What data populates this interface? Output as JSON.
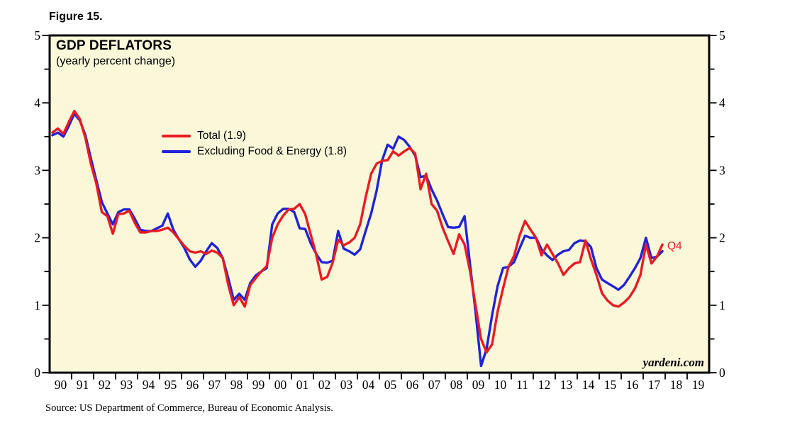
{
  "meta": {
    "figure_label": "Figure 15.",
    "source": "Source: US Department of Commerce, Bureau of Economic Analysis.",
    "watermark": "yardeni.com"
  },
  "chart_data": {
    "type": "line",
    "title": "GDP DEFLATORS",
    "subtitle": "(yearly percent change)",
    "frequency": "quarterly",
    "x_start_year": 1990,
    "x_end_year": 2020,
    "x_tick_labels": [
      "90",
      "91",
      "92",
      "93",
      "94",
      "95",
      "96",
      "97",
      "98",
      "99",
      "00",
      "01",
      "02",
      "03",
      "04",
      "05",
      "06",
      "07",
      "08",
      "09",
      "10",
      "11",
      "12",
      "13",
      "14",
      "15",
      "16",
      "17",
      "18",
      "19"
    ],
    "ylim": [
      0,
      5
    ],
    "y_tick_labels": [
      "0",
      "1",
      "2",
      "3",
      "4",
      "5"
    ],
    "y_minor_step": 0.5,
    "grid": false,
    "legend_position": "upper-left-inside",
    "annotation": "Q4",
    "colors": {
      "total": "#ea1b22",
      "core": "#2023d9",
      "plot_bg": "#fbf8da",
      "axis": "#000000"
    },
    "series": [
      {
        "name": "Total (1.9)",
        "color_key": "total",
        "last_value": 1.9,
        "values": [
          3.56,
          3.62,
          3.54,
          3.72,
          3.88,
          3.76,
          3.48,
          3.1,
          2.8,
          2.38,
          2.32,
          2.06,
          2.35,
          2.36,
          2.4,
          2.22,
          2.08,
          2.08,
          2.1,
          2.1,
          2.12,
          2.15,
          2.08,
          1.98,
          1.88,
          1.8,
          1.78,
          1.8,
          1.76,
          1.81,
          1.78,
          1.7,
          1.3,
          1.0,
          1.12,
          0.98,
          1.3,
          1.4,
          1.5,
          1.58,
          2.0,
          2.2,
          2.33,
          2.42,
          2.43,
          2.5,
          2.35,
          2.05,
          1.75,
          1.38,
          1.42,
          1.63,
          1.97,
          1.89,
          1.93,
          2.0,
          2.2,
          2.6,
          2.95,
          3.1,
          3.14,
          3.15,
          3.28,
          3.22,
          3.28,
          3.33,
          3.25,
          2.72,
          2.95,
          2.5,
          2.4,
          2.15,
          1.95,
          1.76,
          2.05,
          1.9,
          1.5,
          1.0,
          0.5,
          0.3,
          0.42,
          0.9,
          1.25,
          1.57,
          1.73,
          2.03,
          2.25,
          2.12,
          2.0,
          1.74,
          1.9,
          1.76,
          1.62,
          1.45,
          1.55,
          1.62,
          1.64,
          1.96,
          1.68,
          1.45,
          1.18,
          1.07,
          1.0,
          0.98,
          1.04,
          1.12,
          1.25,
          1.45,
          1.9,
          1.62,
          1.72,
          1.9
        ]
      },
      {
        "name": "Excluding Food & Energy (1.8)",
        "color_key": "core",
        "last_value": 1.8,
        "values": [
          3.52,
          3.56,
          3.5,
          3.66,
          3.84,
          3.74,
          3.52,
          3.18,
          2.85,
          2.53,
          2.36,
          2.2,
          2.38,
          2.42,
          2.42,
          2.28,
          2.12,
          2.1,
          2.1,
          2.14,
          2.18,
          2.36,
          2.12,
          1.98,
          1.85,
          1.68,
          1.57,
          1.66,
          1.8,
          1.92,
          1.85,
          1.7,
          1.4,
          1.08,
          1.17,
          1.08,
          1.33,
          1.44,
          1.5,
          1.55,
          2.2,
          2.36,
          2.43,
          2.43,
          2.38,
          2.14,
          2.13,
          1.92,
          1.76,
          1.64,
          1.63,
          1.66,
          2.1,
          1.84,
          1.8,
          1.75,
          1.83,
          2.1,
          2.36,
          2.7,
          3.15,
          3.38,
          3.32,
          3.5,
          3.45,
          3.35,
          3.22,
          2.9,
          2.92,
          2.72,
          2.55,
          2.35,
          2.16,
          2.15,
          2.16,
          2.32,
          1.6,
          0.9,
          0.1,
          0.35,
          0.85,
          1.28,
          1.55,
          1.57,
          1.64,
          1.84,
          2.03,
          2.0,
          2.0,
          1.83,
          1.74,
          1.67,
          1.75,
          1.8,
          1.82,
          1.92,
          1.96,
          1.95,
          1.86,
          1.55,
          1.38,
          1.33,
          1.28,
          1.23,
          1.3,
          1.42,
          1.55,
          1.7,
          2.0,
          1.7,
          1.72,
          1.8
        ]
      }
    ]
  }
}
